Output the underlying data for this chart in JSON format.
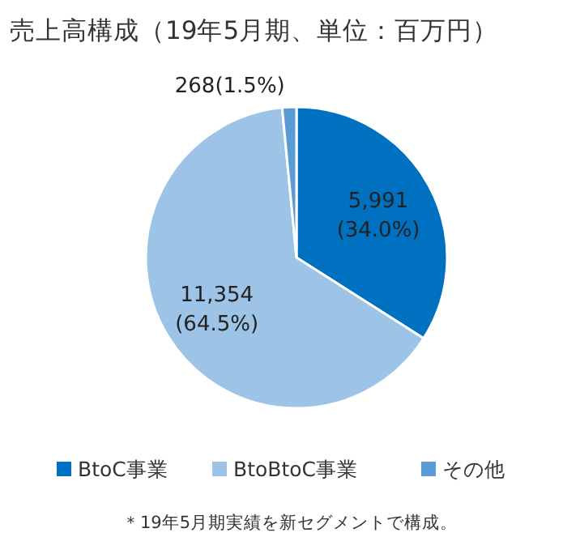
{
  "chart_data": {
    "type": "pie",
    "title": "売上高構成（19年5月期、単位：百万円）",
    "categories": [
      "BtoC事業",
      "BtoBtoC事業",
      "その他"
    ],
    "values": [
      5991,
      11354,
      268
    ],
    "colors": [
      "#0070c0",
      "#9dc3e6",
      "#5b9bd5"
    ],
    "value_labels": [
      "5,991\n(34.0%)",
      "11,354\n(64.5%)",
      "268(1.5%)"
    ],
    "legend": "bottom",
    "annotations": [
      "＊19年5月期実績を新セグメントで構成。"
    ]
  }
}
